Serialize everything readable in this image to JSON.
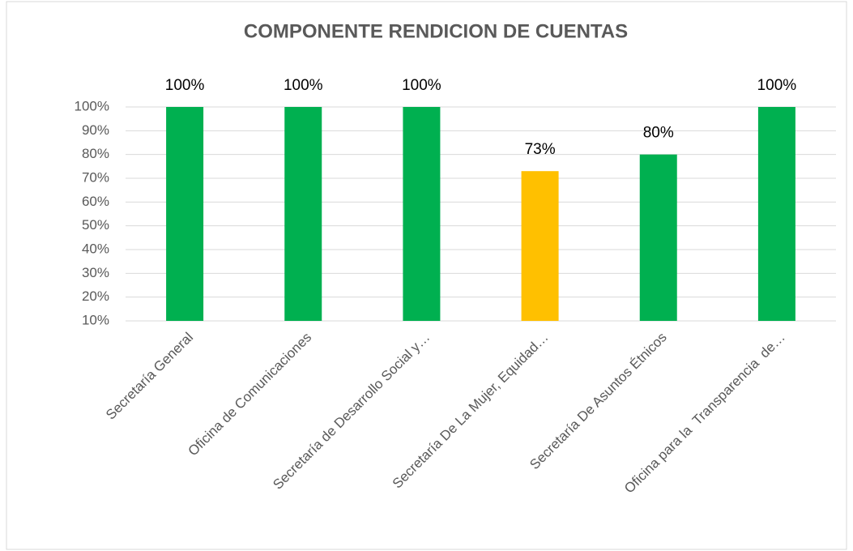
{
  "chart_data": {
    "type": "bar",
    "title": "COMPONENTE RENDICION DE CUENTAS",
    "categories": [
      "Secretaría General",
      "Oficina de Comunicaciones",
      "Secretaría de Desarrollo Social y…",
      "Secretaría De La Mujer, Equidad…",
      "Secretaría De Asuntos Étnicos",
      "Oficina para la  Transparencia  de…"
    ],
    "values": [
      100,
      100,
      100,
      73,
      80,
      100
    ],
    "value_labels": [
      "100%",
      "100%",
      "100%",
      "73%",
      "80%",
      "100%"
    ],
    "colors": [
      "#00b050",
      "#00b050",
      "#00b050",
      "#ffc000",
      "#00b050",
      "#00b050"
    ],
    "ylim": [
      10,
      100
    ],
    "yticks": [
      {
        "value": 10,
        "label": "10%"
      },
      {
        "value": 20,
        "label": "20%"
      },
      {
        "value": 30,
        "label": "30%"
      },
      {
        "value": 40,
        "label": "40%"
      },
      {
        "value": 50,
        "label": "50%"
      },
      {
        "value": 60,
        "label": "60%"
      },
      {
        "value": 70,
        "label": "70%"
      },
      {
        "value": 80,
        "label": "80%"
      },
      {
        "value": 90,
        "label": "90%"
      },
      {
        "value": 100,
        "label": "100%"
      }
    ],
    "grid": true
  }
}
